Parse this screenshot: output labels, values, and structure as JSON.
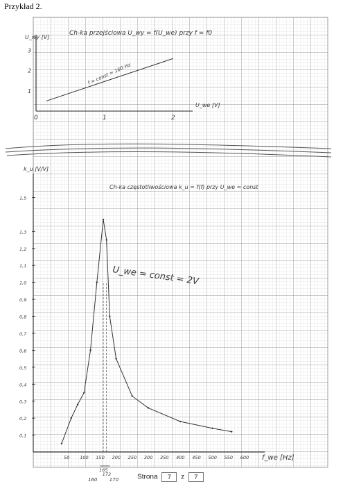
{
  "page": {
    "heading": "Przykład 2.",
    "footer_label": "Strona",
    "footer_page": "7",
    "footer_sep": "z",
    "footer_total": "7"
  },
  "chart_data": [
    {
      "type": "line",
      "title": "Ch-ka przejściowa U_wy = f(U_we) przy f = f0",
      "ylabel": "U_wy [V]",
      "xlabel": "U_we [V]",
      "annotation": "f = const = 160 Hz",
      "x_ticks": [
        "0",
        "1",
        "2"
      ],
      "y_ticks": [
        "1",
        "2",
        "3"
      ],
      "xlim": [
        0,
        2
      ],
      "ylim": [
        0,
        3.5
      ],
      "x": [
        0.15,
        2.0
      ],
      "y": [
        0.5,
        2.6
      ]
    },
    {
      "type": "line",
      "title": "Ch-ka częstotliwościowa k_u = f(f) przy U_we = const",
      "ylabel": "k_u [V/V]",
      "xlabel": "f_we [Hz]",
      "annotation": "U_we = const = 2V",
      "y_ticks": [
        "1,5",
        "1,3",
        "1,2",
        "1,1",
        "1,0",
        "0,9",
        "0,8",
        "0,7",
        "0,6",
        "0,5",
        "0,4",
        "0,3",
        "0,2",
        "0,1"
      ],
      "x_ticks": [
        "50",
        "100",
        "150",
        "200",
        "250",
        "300",
        "350",
        "400",
        "450",
        "500",
        "550",
        "600"
      ],
      "bandwidth_labels": [
        "165",
        "172"
      ],
      "band_values": [
        "160",
        "170"
      ],
      "xlim": [
        0,
        620
      ],
      "ylim": [
        0,
        1.6
      ],
      "x": [
        30,
        60,
        80,
        100,
        120,
        140,
        160,
        170,
        180,
        200,
        250,
        300,
        400,
        500,
        560
      ],
      "y": [
        0.05,
        0.2,
        0.28,
        0.35,
        0.6,
        1.0,
        1.37,
        1.25,
        0.8,
        0.55,
        0.33,
        0.26,
        0.18,
        0.14,
        0.12
      ]
    }
  ]
}
